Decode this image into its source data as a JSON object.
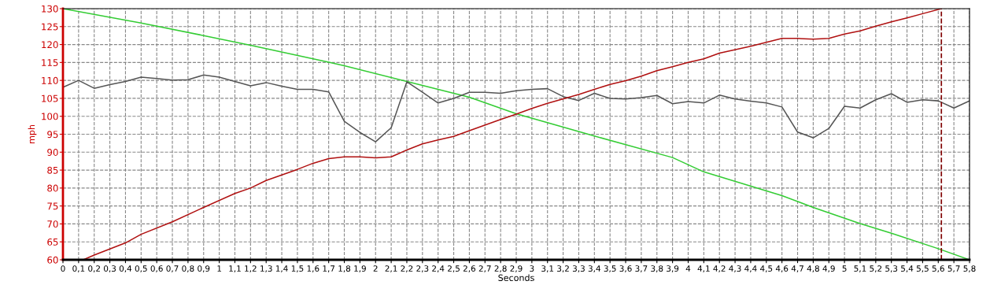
{
  "chart_data": {
    "type": "line",
    "xlabel": "Seconds",
    "ylabel": "mph",
    "series": [
      {
        "color": "#33cc33",
        "x": [
          0,
          0.5,
          0.9,
          1.2,
          1.7,
          1.8,
          2.2,
          2.6,
          2.9,
          3.4,
          3.9,
          4.1,
          4.6,
          4.8,
          5.1,
          5.3,
          5.6,
          5.8
        ],
        "values": [
          130,
          126,
          122.5,
          119.8,
          115.1,
          114.1,
          109.7,
          105.3,
          100.7,
          94.5,
          88.5,
          84.5,
          77.9,
          74.6,
          70.1,
          67.4,
          63.1,
          60
        ]
      },
      {
        "color": "#555555",
        "x": [
          0,
          0.1,
          0.2,
          0.3,
          0.4,
          0.5,
          0.6,
          0.7,
          0.8,
          0.9,
          1,
          1.1,
          1.2,
          1.3,
          1.4,
          1.5,
          1.6,
          1.7,
          1.8,
          1.9,
          2,
          2.1,
          2.2,
          2.3,
          2.4,
          2.5,
          2.6,
          2.7,
          2.8,
          2.9,
          3,
          3.1,
          3.2,
          3.3,
          3.4,
          3.5,
          3.6,
          3.7,
          3.8,
          3.9,
          4,
          4.1,
          4.2,
          4.3,
          4.4,
          4.5,
          4.6,
          4.7,
          4.8,
          4.9,
          5,
          5.1,
          5.2,
          5.3,
          5.4,
          5.5,
          5.6,
          5.7,
          5.8
        ],
        "values": [
          108.1,
          110,
          107.8,
          108.8,
          109.7,
          110.9,
          110.5,
          110.1,
          110.2,
          111.5,
          110.9,
          109.7,
          108.5,
          109.4,
          108.4,
          107.5,
          107.5,
          106.8,
          98.6,
          95.5,
          92.9,
          96.8,
          109.6,
          106.7,
          103.7,
          105,
          106.7,
          106.7,
          106.4,
          107.1,
          107.5,
          107.7,
          105.5,
          104.4,
          106.4,
          105,
          104.8,
          105.2,
          105.8,
          103.5,
          104.1,
          103.7,
          105.9,
          104.8,
          104.2,
          103.7,
          102.6,
          95.6,
          94,
          96.6,
          102.8,
          102.3,
          104.6,
          106.3,
          103.9,
          104.6,
          104.3,
          102.3,
          104.3
        ]
      },
      {
        "color": "#b01010",
        "x": [
          0.13,
          0.2,
          0.4,
          0.5,
          0.7,
          0.9,
          1.1,
          1.2,
          1.3,
          1.5,
          1.6,
          1.7,
          1.8,
          1.9,
          2,
          2.1,
          2.2,
          2.3,
          2.4,
          2.5,
          2.6,
          2.8,
          2.9,
          3,
          3.1,
          3.3,
          3.4,
          3.5,
          3.6,
          3.7,
          3.8,
          3.9,
          4,
          4.1,
          4.2,
          4.4,
          4.6,
          4.7,
          4.8,
          4.9,
          5,
          5.1,
          5.2,
          5.3,
          5.4,
          5.5,
          5.62
        ],
        "values": [
          60,
          61.3,
          64.7,
          67.1,
          70.6,
          74.6,
          78.5,
          80,
          82.1,
          85.2,
          86.9,
          88.2,
          88.7,
          88.7,
          88.4,
          88.7,
          90.6,
          92.3,
          93.4,
          94.4,
          96,
          99.1,
          100.6,
          102.2,
          103.6,
          106.1,
          107.5,
          108.9,
          109.9,
          111.2,
          112.7,
          113.8,
          115,
          116,
          117.6,
          119.5,
          121.7,
          121.7,
          121.5,
          121.7,
          122.9,
          123.8,
          125.1,
          126.3,
          127.4,
          128.6,
          130
        ]
      }
    ],
    "ref_lines": [
      {
        "axis": "x",
        "value": 5.62,
        "color": "#800000",
        "line_style": "dashed"
      }
    ],
    "xlim": [
      0,
      5.8
    ],
    "ylim": [
      60,
      130
    ],
    "xticks": [
      0,
      {
        "value": 0.1,
        "label": "0,1"
      },
      {
        "value": 0.2,
        "label": "0,2"
      },
      {
        "value": 0.3,
        "label": "0,3"
      },
      {
        "value": 0.4,
        "label": "0,4"
      },
      {
        "value": 0.5,
        "label": "0,5"
      },
      {
        "value": 0.6,
        "label": "0,6"
      },
      {
        "value": 0.7,
        "label": "0,7"
      },
      {
        "value": 0.8,
        "label": "0,8"
      },
      {
        "value": 0.9,
        "label": "0,9"
      },
      1,
      {
        "value": 1.1,
        "label": "1,1"
      },
      {
        "value": 1.2,
        "label": "1,2"
      },
      {
        "value": 1.3,
        "label": "1,3"
      },
      {
        "value": 1.4,
        "label": "1,4"
      },
      {
        "value": 1.5,
        "label": "1,5"
      },
      {
        "value": 1.6,
        "label": "1,6"
      },
      {
        "value": 1.7,
        "label": "1,7"
      },
      {
        "value": 1.8,
        "label": "1,8"
      },
      {
        "value": 1.9,
        "label": "1,9"
      },
      2,
      {
        "value": 2.1,
        "label": "2,1"
      },
      {
        "value": 2.2,
        "label": "2,2"
      },
      {
        "value": 2.3,
        "label": "2,3"
      },
      {
        "value": 2.4,
        "label": "2,4"
      },
      {
        "value": 2.5,
        "label": "2,5"
      },
      {
        "value": 2.6,
        "label": "2,6"
      },
      {
        "value": 2.7,
        "label": "2,7"
      },
      {
        "value": 2.8,
        "label": "2,8"
      },
      {
        "value": 2.9,
        "label": "2,9"
      },
      3,
      {
        "value": 3.1,
        "label": "3,1"
      },
      {
        "value": 3.2,
        "label": "3,2"
      },
      {
        "value": 3.3,
        "label": "3,3"
      },
      {
        "value": 3.4,
        "label": "3,4"
      },
      {
        "value": 3.5,
        "label": "3,5"
      },
      {
        "value": 3.6,
        "label": "3,6"
      },
      {
        "value": 3.7,
        "label": "3,7"
      },
      {
        "value": 3.8,
        "label": "3,8"
      },
      {
        "value": 3.9,
        "label": "3,9"
      },
      4,
      {
        "value": 4.1,
        "label": "4,1"
      },
      {
        "value": 4.2,
        "label": "4,2"
      },
      {
        "value": 4.3,
        "label": "4,3"
      },
      {
        "value": 4.4,
        "label": "4,4"
      },
      {
        "value": 4.5,
        "label": "4,5"
      },
      {
        "value": 4.6,
        "label": "4,6"
      },
      {
        "value": 4.7,
        "label": "4,7"
      },
      {
        "value": 4.8,
        "label": "4,8"
      },
      {
        "value": 4.9,
        "label": "4,9"
      },
      5,
      {
        "value": 5.1,
        "label": "5,1"
      },
      {
        "value": 5.2,
        "label": "5,2"
      },
      {
        "value": 5.3,
        "label": "5,3"
      },
      {
        "value": 5.4,
        "label": "5,4"
      },
      {
        "value": 5.5,
        "label": "5,5"
      },
      {
        "value": 5.6,
        "label": "5,6"
      },
      {
        "value": 5.7,
        "label": "5,7"
      },
      {
        "value": 5.8,
        "label": "5,8"
      }
    ],
    "yticks": [
      60,
      65,
      70,
      75,
      80,
      85,
      90,
      95,
      100,
      105,
      110,
      115,
      120,
      125,
      130
    ],
    "grid": true,
    "marker": "none",
    "line_style": "solid"
  }
}
